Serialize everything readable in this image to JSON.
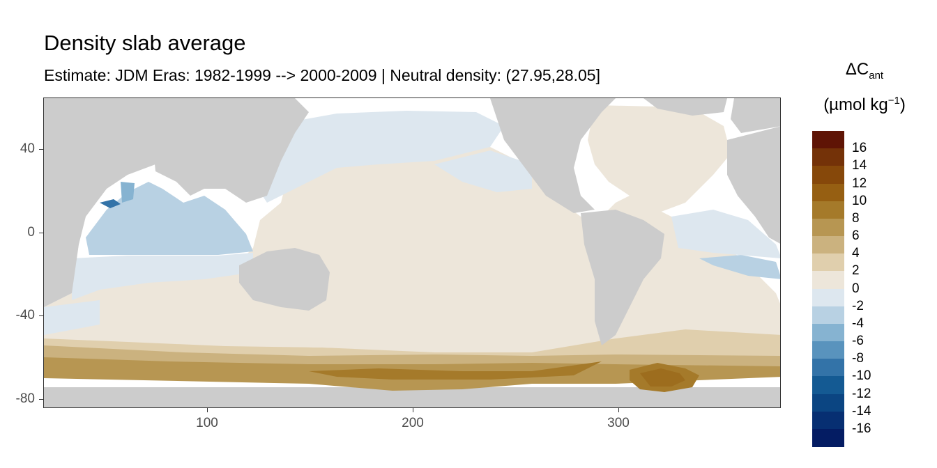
{
  "title": "Density slab average",
  "subtitle": "Estimate: JDM Eras: 1982-1999 --> 2000-2009 | Neutral density: (27.95,28.05]",
  "legend": {
    "title_symbol": "ΔC",
    "title_subscript": "ant",
    "title_unit_prefix": "(µmol kg",
    "title_unit_superscript": "−1",
    "title_unit_suffix": ")",
    "breaks": [
      "16",
      "14",
      "12",
      "10",
      "8",
      "6",
      "4",
      "2",
      "0",
      "-2",
      "-4",
      "-6",
      "-8",
      "-10",
      "-12",
      "-14",
      "-16"
    ],
    "colors": [
      "#5f1405",
      "#743208",
      "#86480a",
      "#965f12",
      "#a57a2a",
      "#b79652",
      "#cbb27f",
      "#e0cfad",
      "#ede6da",
      "#dde7ef",
      "#b8d1e3",
      "#86b3d1",
      "#5993bd",
      "#3373a8",
      "#145a93",
      "#0b4582",
      "#072f72",
      "#041c63"
    ]
  },
  "axes": {
    "x_ticks": [
      "100",
      "200",
      "300"
    ],
    "y_ticks": [
      "40",
      "0",
      "-40",
      "-80"
    ]
  },
  "colors": {
    "land": "#cccccc",
    "missing": "#ffffff",
    "panel_border": "#333333"
  },
  "chart_data": {
    "type": "heatmap",
    "title": "Density slab average",
    "subtitle": "Estimate: JDM Eras: 1982-1999 --> 2000-2009 | Neutral density: (27.95,28.05]",
    "xlabel": "",
    "ylabel": "",
    "xlim": [
      20,
      380
    ],
    "ylim": [
      -85,
      65
    ],
    "x_ticks": [
      100,
      200,
      300
    ],
    "y_ticks": [
      40,
      0,
      -40,
      -80
    ],
    "fill_range": [
      -18,
      18
    ],
    "fill_step": 2,
    "regions": [
      {
        "zone": "Southern Ocean near Antarctica",
        "approx_value": 8
      },
      {
        "zone": "Weddell Sea",
        "approx_value": 10
      },
      {
        "zone": "Southern Ocean 40-55S",
        "approx_value": 2
      },
      {
        "zone": "Pacific and Atlantic subtropics",
        "approx_value": 0
      },
      {
        "zone": "North Pacific",
        "approx_value": -1
      },
      {
        "zone": "Indian Ocean",
        "approx_value": -3
      },
      {
        "zone": "Arabian Sea spot",
        "approx_value": -10
      },
      {
        "zone": "Eastern South Atlantic",
        "approx_value": -3
      }
    ],
    "legend_position": "right"
  }
}
